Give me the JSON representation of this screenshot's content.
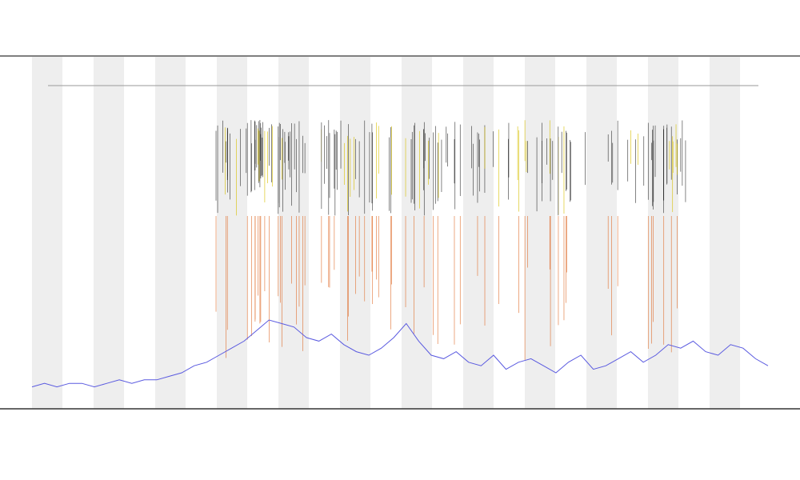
{
  "chart_data": {
    "type": "line",
    "x": [
      0,
      1,
      2,
      3,
      4,
      5,
      6,
      7,
      8,
      9,
      10,
      11,
      12,
      13,
      14,
      15,
      16,
      17,
      18,
      19,
      20,
      21,
      22,
      23,
      24,
      25,
      26,
      27,
      28,
      29,
      30,
      31,
      32,
      33,
      34,
      35,
      36,
      37,
      38,
      39,
      40,
      41,
      42,
      43,
      44,
      45,
      46,
      47,
      48,
      49,
      50,
      51,
      52,
      53,
      54,
      55,
      56,
      57,
      58,
      59
    ],
    "xlim": [
      0,
      59
    ],
    "ylim": [
      0,
      100
    ],
    "series": [
      {
        "color": "#5a5ae0",
        "values": [
          6,
          7,
          6,
          7,
          7,
          6,
          7,
          8,
          7,
          8,
          8,
          9,
          10,
          12,
          13,
          15,
          17,
          19,
          22,
          25,
          24,
          23,
          20,
          19,
          21,
          18,
          16,
          15,
          17,
          20,
          24,
          19,
          15,
          14,
          16,
          13,
          12,
          15,
          11,
          13,
          14,
          12,
          10,
          13,
          15,
          11,
          12,
          14,
          16,
          13,
          15,
          18,
          17,
          19,
          16,
          15,
          18,
          17,
          14,
          12
        ]
      }
    ]
  }
}
